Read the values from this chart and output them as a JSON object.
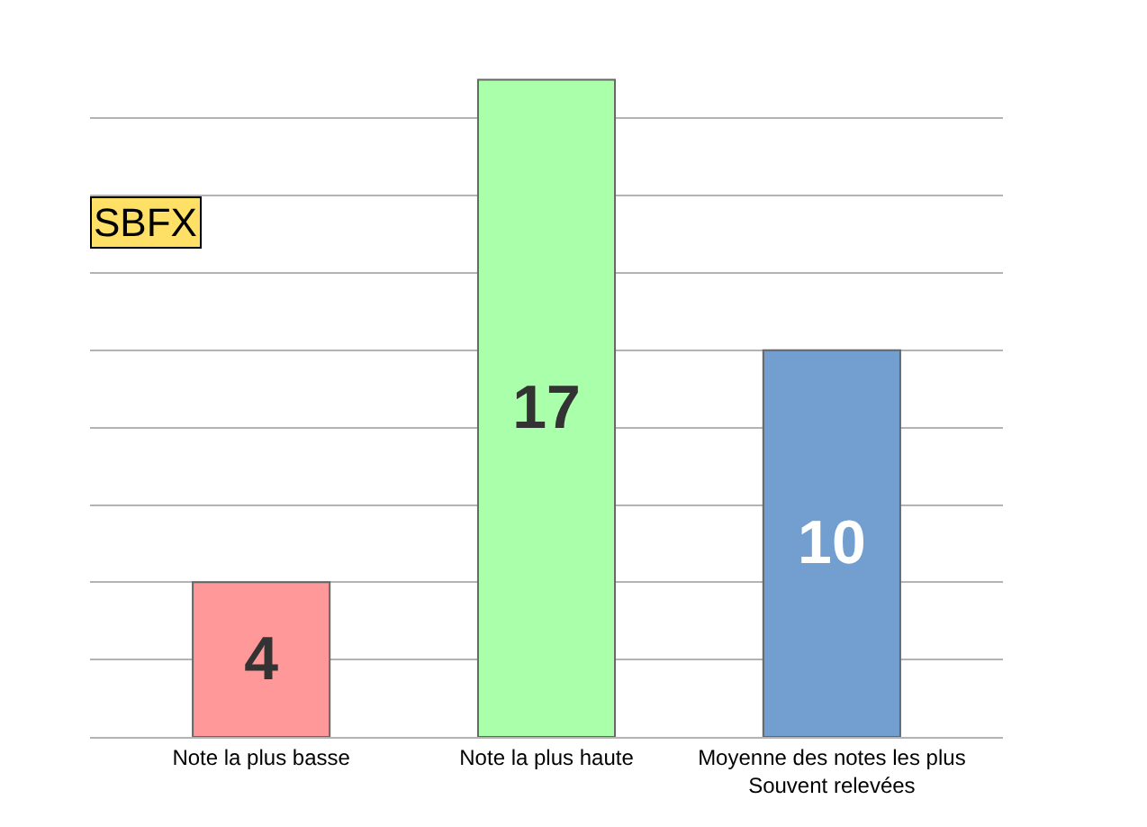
{
  "chart_data": {
    "type": "bar",
    "title": "SBFX",
    "categories": [
      "Note la plus basse",
      "Note la plus haute",
      "Moyenne des notes les plus\nSouvent relevées"
    ],
    "values": [
      4,
      17,
      10
    ],
    "colors": [
      "#ff9999",
      "#aaffaa",
      "#729fcf"
    ],
    "tick_labels": "x",
    "grid": "y",
    "data_labels": true
  }
}
